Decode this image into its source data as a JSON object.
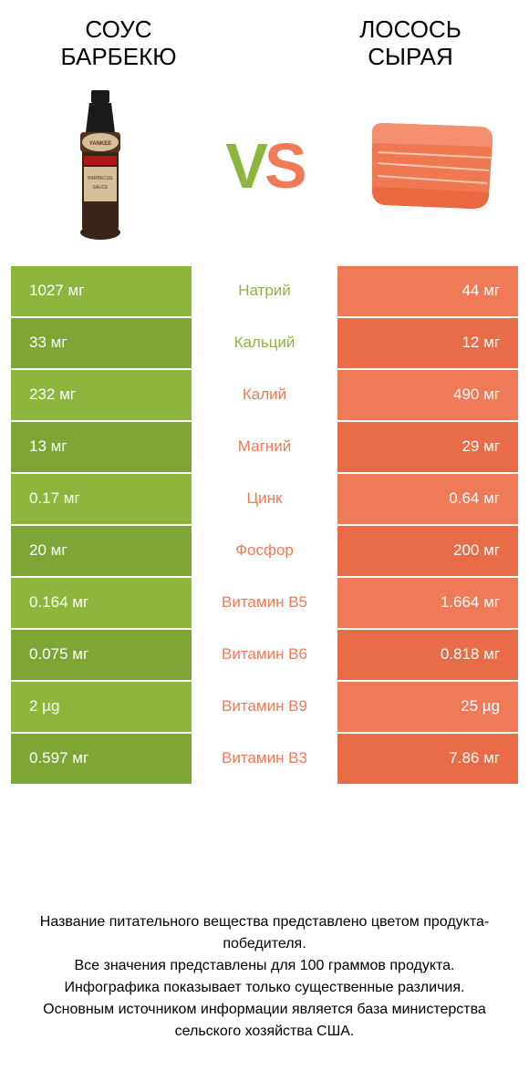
{
  "colors": {
    "left": "#8eb63f",
    "left_dark": "#7ea536",
    "right": "#ef7a57",
    "right_dark": "#e86c48",
    "vs_left": "#8eb63f",
    "vs_right": "#ef7a57"
  },
  "header": {
    "left_line1": "СОУС",
    "left_line2": "БАРБЕКЮ",
    "right_line1": "ЛОСОСЬ",
    "right_line2": "СЫРАЯ",
    "vs_v": "V",
    "vs_s": "S"
  },
  "rows": [
    {
      "label": "Натрий",
      "left": "1027 мг",
      "right": "44 мг",
      "winner": "left"
    },
    {
      "label": "Кальций",
      "left": "33 мг",
      "right": "12 мг",
      "winner": "left"
    },
    {
      "label": "Калий",
      "left": "232 мг",
      "right": "490 мг",
      "winner": "right"
    },
    {
      "label": "Магний",
      "left": "13 мг",
      "right": "29 мг",
      "winner": "right"
    },
    {
      "label": "Цинк",
      "left": "0.17 мг",
      "right": "0.64 мг",
      "winner": "right"
    },
    {
      "label": "Фосфор",
      "left": "20 мг",
      "right": "200 мг",
      "winner": "right"
    },
    {
      "label": "Витамин B5",
      "left": "0.164 мг",
      "right": "1.664 мг",
      "winner": "right"
    },
    {
      "label": "Витамин B6",
      "left": "0.075 мг",
      "right": "0.818 мг",
      "winner": "right"
    },
    {
      "label": "Витамин B9",
      "left": "2 µg",
      "right": "25 µg",
      "winner": "right"
    },
    {
      "label": "Витамин B3",
      "left": "0.597 мг",
      "right": "7.86 мг",
      "winner": "right"
    }
  ],
  "footer": {
    "l1": "Название питательного вещества представлено цветом продукта-победителя.",
    "l2": "Все значения представлены для 100 граммов продукта.",
    "l3": "Инфографика показывает только существенные различия.",
    "l4": "Основным источником информации является база министерства сельского хозяйства США."
  }
}
